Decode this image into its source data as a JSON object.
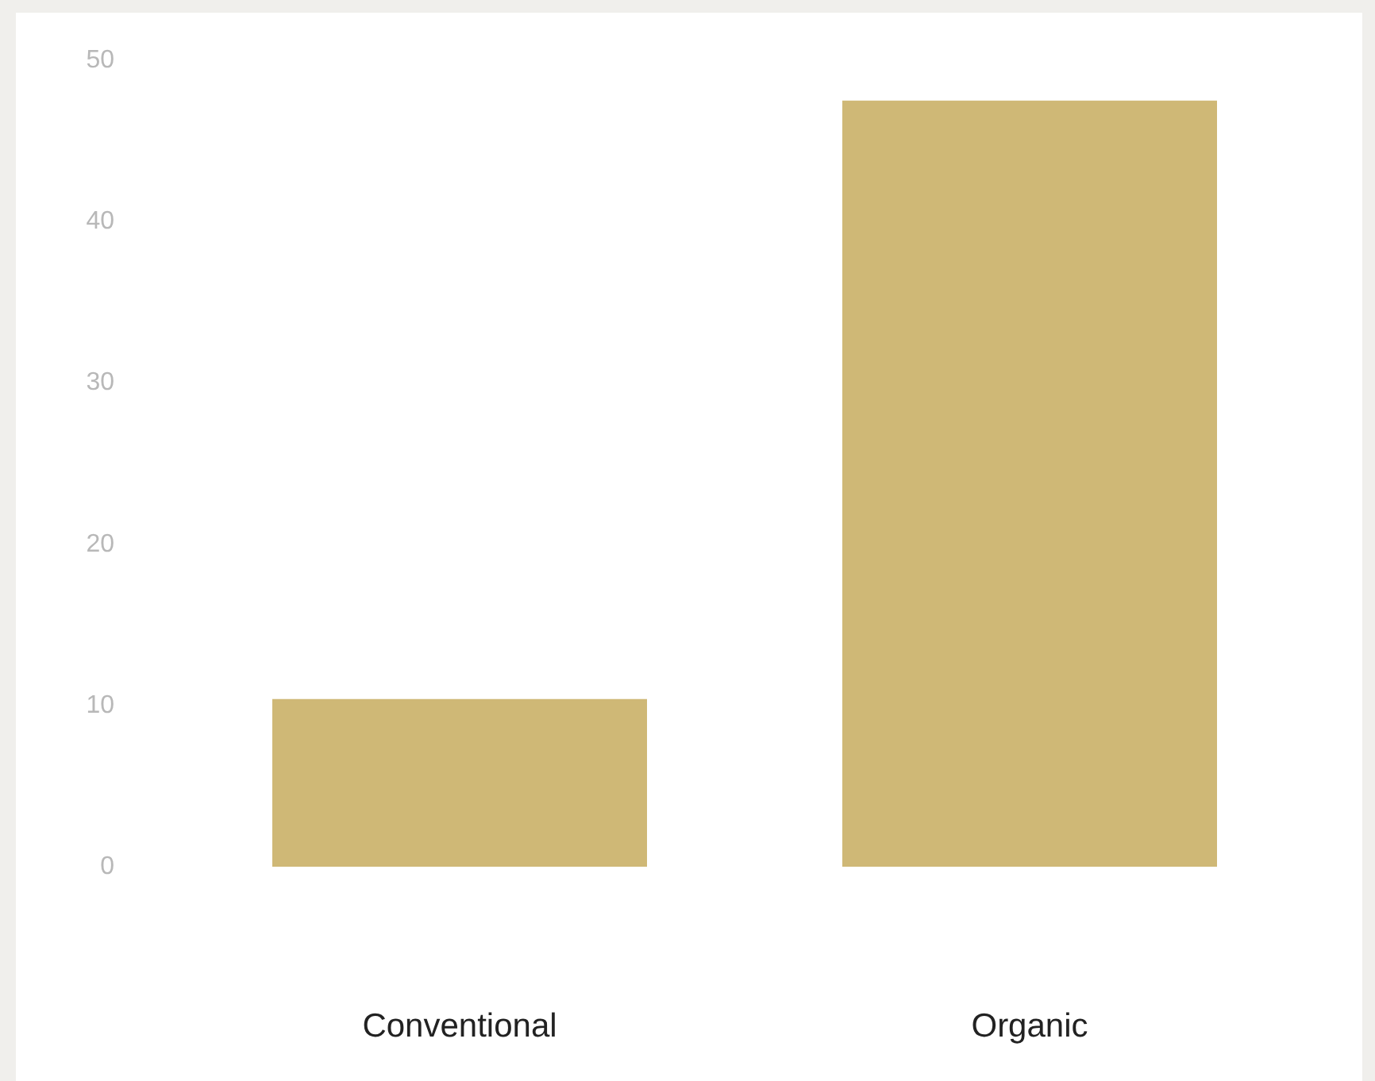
{
  "chart_data": {
    "type": "bar",
    "categories": [
      "Conventional",
      "Organic"
    ],
    "series": [
      {
        "color": "#cfb876",
        "values": [
          10.4,
          47.5
        ]
      }
    ],
    "ylim": [
      0,
      50
    ],
    "yticks": [
      0,
      10,
      20,
      30,
      40,
      50
    ],
    "grid": false
  }
}
